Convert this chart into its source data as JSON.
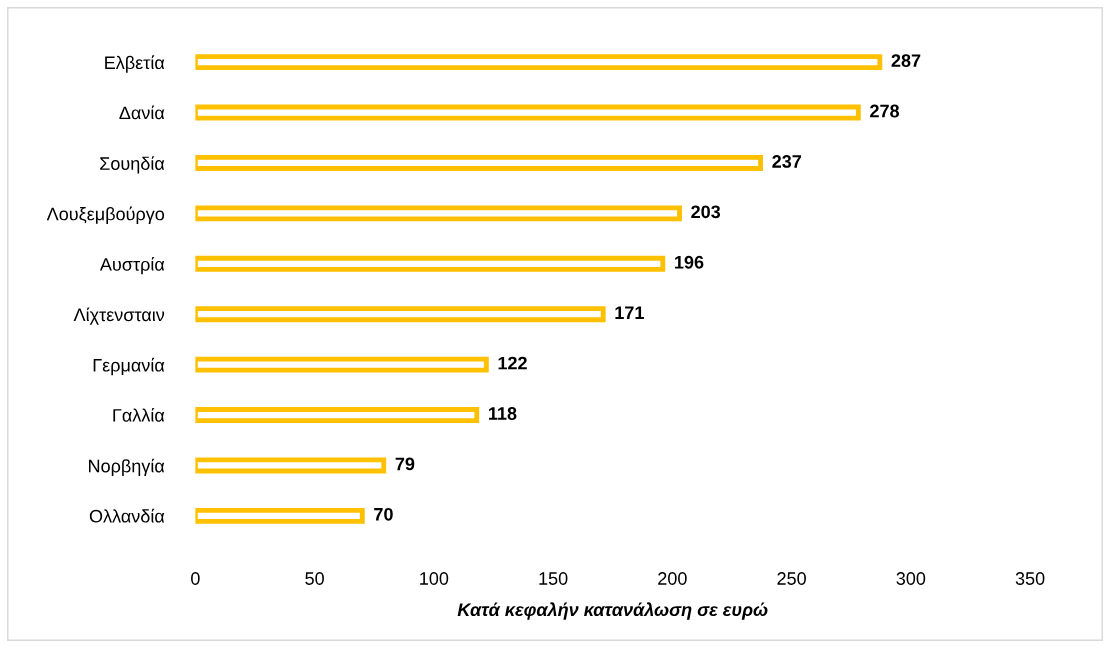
{
  "chart_data": {
    "type": "bar",
    "orientation": "horizontal",
    "xlabel": "Κατά κεφαλήν κατανάλωση σε ευρώ",
    "categories": [
      "Ελβετία",
      "Δανία",
      "Σουηδία",
      "Λουξεμβούργο",
      "Αυστρία",
      "Λίχτενσταιν",
      "Γερμανία",
      "Γαλλία",
      "Νορβηγία",
      "Ολλανδία"
    ],
    "values": [
      287,
      278,
      237,
      203,
      196,
      171,
      122,
      118,
      79,
      70
    ],
    "color": "#ffc000",
    "xlim": [
      0,
      350
    ],
    "xticks": [
      0,
      50,
      100,
      150,
      200,
      250,
      300,
      350
    ],
    "data_labels": true,
    "grid": false,
    "legend": false
  }
}
